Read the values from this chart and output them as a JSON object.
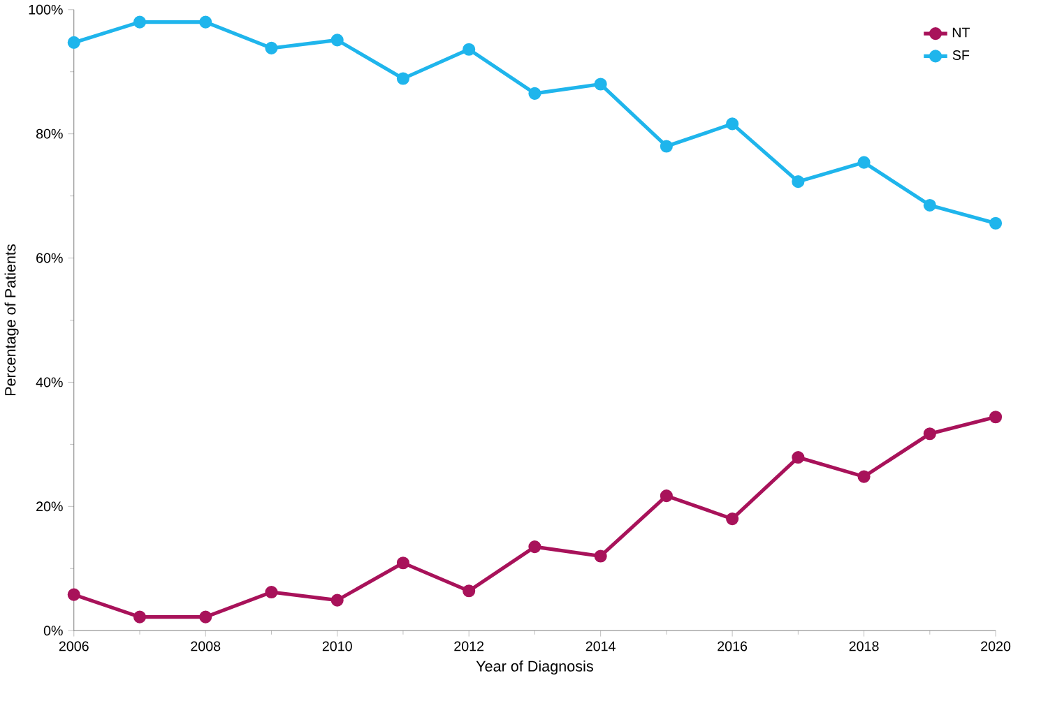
{
  "chart_data": {
    "type": "line",
    "xlabel": "Year of Diagnosis",
    "ylabel": "Percentage of Patients",
    "x": [
      2006,
      2007,
      2008,
      2009,
      2010,
      2011,
      2012,
      2013,
      2014,
      2015,
      2016,
      2017,
      2018,
      2019,
      2020
    ],
    "series": [
      {
        "name": "NT",
        "color": "#a8125a",
        "values": [
          5.8,
          2.2,
          2.2,
          6.2,
          4.9,
          10.9,
          6.4,
          13.5,
          12.0,
          21.7,
          18.0,
          27.9,
          24.8,
          31.7,
          34.4
        ]
      },
      {
        "name": "SF",
        "color": "#1fb5ec",
        "values": [
          94.7,
          98.0,
          98.0,
          93.8,
          95.1,
          88.9,
          93.6,
          86.5,
          88.0,
          78.0,
          81.6,
          72.3,
          75.4,
          68.5,
          65.6
        ]
      }
    ],
    "xlim": [
      2006,
      2020
    ],
    "xticks": [
      2006,
      2008,
      2010,
      2012,
      2014,
      2016,
      2018,
      2020
    ],
    "ylim": [
      0,
      100
    ],
    "yticks": [
      {
        "value": 0,
        "label": "0%"
      },
      {
        "value": 20,
        "label": "20%"
      },
      {
        "value": 40,
        "label": "40%"
      },
      {
        "value": 60,
        "label": "60%"
      },
      {
        "value": 80,
        "label": "80%"
      },
      {
        "value": 100,
        "label": "100%"
      }
    ],
    "grid": false,
    "legend": "top right",
    "marker": "circle",
    "line_style": "solid"
  }
}
